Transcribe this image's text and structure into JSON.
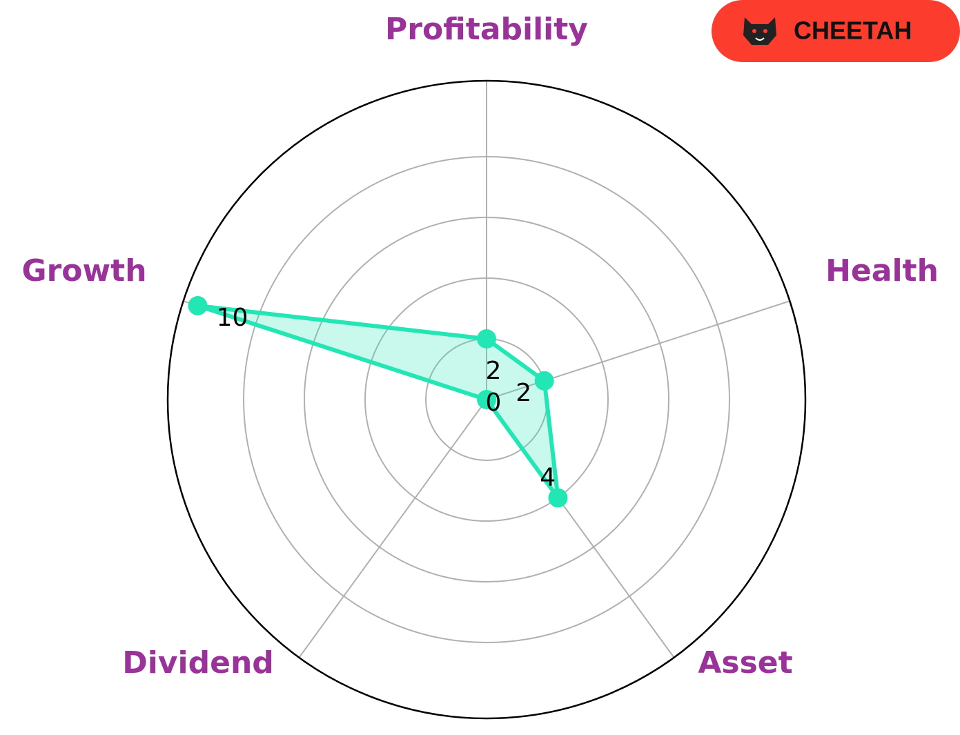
{
  "chart_data": {
    "type": "radar",
    "categories": [
      "Profitability",
      "Health",
      "Asset",
      "Dividend",
      "Growth"
    ],
    "values": [
      2,
      2,
      4,
      0,
      10
    ],
    "color": "#22e6b4",
    "rlim": [
      0,
      10.5
    ],
    "rticks": [
      2,
      4,
      6,
      8
    ],
    "grid": true
  },
  "badge": {
    "text": "CHEETAH"
  }
}
